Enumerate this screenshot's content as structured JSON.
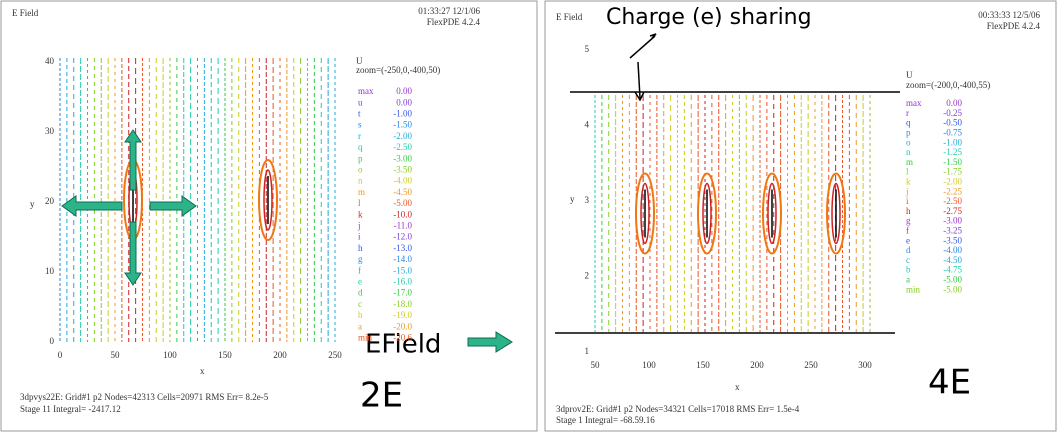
{
  "left_panel": {
    "title": "E Field",
    "timestamp": "01:33:27 12/1/06",
    "software": "FlexPDE 4.2.4",
    "legend": {
      "variable": "U",
      "zoom": "zoom=(-250,0,-400,50)",
      "entries": [
        [
          "max",
          "0.00"
        ],
        [
          "u",
          "0.00"
        ],
        [
          "t",
          "-1.00"
        ],
        [
          "s",
          "-1.50"
        ],
        [
          "r",
          "-2.00"
        ],
        [
          "q",
          "-2.50"
        ],
        [
          "p",
          "-3.00"
        ],
        [
          "o",
          "-3.50"
        ],
        [
          "n",
          "-4.00"
        ],
        [
          "m",
          "-4.50"
        ],
        [
          "l",
          "-5.00"
        ],
        [
          "k",
          "-10.0"
        ],
        [
          "j",
          "-11.0"
        ],
        [
          "i",
          "-12.0"
        ],
        [
          "h",
          "-13.0"
        ],
        [
          "g",
          "-14.0"
        ],
        [
          "f",
          "-15.0"
        ],
        [
          "e",
          "-16.0"
        ],
        [
          "d",
          "-17.0"
        ],
        [
          "c",
          "-18.0"
        ],
        [
          "b",
          "-19.0"
        ],
        [
          "a",
          "-20.0"
        ],
        [
          "min",
          "-20.6"
        ]
      ]
    },
    "y_axis_label": "y",
    "x_axis_label": "x",
    "yticks": [
      "40",
      "30",
      "20",
      "10",
      "0"
    ],
    "xticks": [
      "0",
      "50",
      "100",
      "150",
      "200",
      "250"
    ],
    "footer": [
      "3dpvys22E: Grid#1 p2 Nodes=42313 Cells=20971 RMS Err= 8.2e-5",
      "Stage 11 Integral= -2417.12"
    ],
    "annotation": "2E"
  },
  "right_panel": {
    "title": "E Field",
    "timestamp": "00:33:33 12/5/06",
    "software": "FlexPDE 4.2.4",
    "legend": {
      "variable": "U",
      "zoom": "zoom=(-200,0,-400,55)",
      "entries": [
        [
          "max",
          "0.00"
        ],
        [
          "r",
          "-0.25"
        ],
        [
          "q",
          "-0.50"
        ],
        [
          "p",
          "-0.75"
        ],
        [
          "o",
          "-1.00"
        ],
        [
          "n",
          "-1.25"
        ],
        [
          "m",
          "-1.50"
        ],
        [
          "l",
          "-1.75"
        ],
        [
          "k",
          "-2.00"
        ],
        [
          "j",
          "-2.25"
        ],
        [
          "i",
          "-2.50"
        ],
        [
          "h",
          "-2.75"
        ],
        [
          "g",
          "-3.00"
        ],
        [
          "f",
          "-3.25"
        ],
        [
          "e",
          "-3.50"
        ],
        [
          "d",
          "-4.00"
        ],
        [
          "c",
          "-4.50"
        ],
        [
          "b",
          "-4.75"
        ],
        [
          "a",
          "-5.00"
        ],
        [
          "min",
          "-5.00"
        ]
      ]
    },
    "y_axis_label": "y",
    "x_axis_label": "x",
    "yticks": [
      "5",
      "4",
      "3",
      "2",
      "1"
    ],
    "xticks": [
      "50",
      "100",
      "150",
      "200",
      "250",
      "300"
    ],
    "footer": [
      "3dprov2E: Grid#1 p2 Nodes=34321 Cells=17018 RMS Err= 1.5e-4",
      "Stage 1 Integral= -68.59.16"
    ],
    "annotation": "4E"
  },
  "annotations": {
    "charge_sharing": "Charge (e) sharing",
    "efield": "EField"
  }
}
